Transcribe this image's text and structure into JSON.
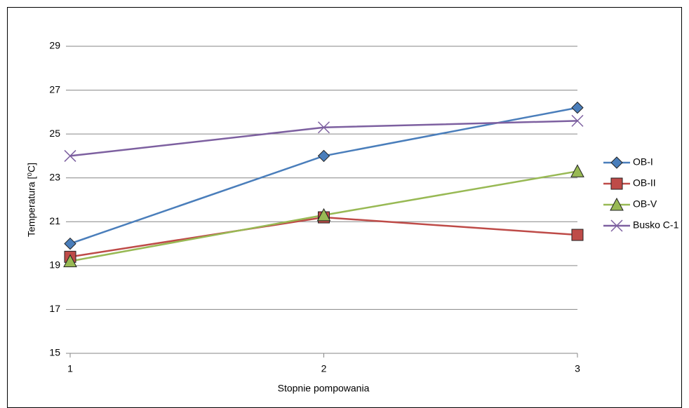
{
  "chart_data": {
    "type": "line",
    "x_label": "Stopnie pompowania",
    "y_label": "Temperatura [⁰C]",
    "x": [
      1,
      2,
      3
    ],
    "xlim": [
      1,
      3
    ],
    "xticks": [
      1,
      2,
      3
    ],
    "ylim": [
      15,
      29
    ],
    "yticks": [
      15,
      17,
      19,
      21,
      23,
      25,
      27,
      29
    ],
    "grid": true,
    "legend": "right",
    "series": [
      {
        "name": "OB-I",
        "color": "#4a7ebb",
        "marker": "diamond",
        "values": [
          20,
          24,
          26.2
        ]
      },
      {
        "name": "OB-II",
        "color": "#be4b48",
        "marker": "square",
        "values": [
          19.4,
          21.2,
          20.4
        ]
      },
      {
        "name": "OB-V",
        "color": "#98b954",
        "marker": "triangle",
        "values": [
          19.2,
          21.3,
          23.3
        ]
      },
      {
        "name": "Busko C-1",
        "color": "#7d60a0",
        "marker": "x",
        "values": [
          24,
          25.3,
          25.6
        ]
      }
    ]
  }
}
